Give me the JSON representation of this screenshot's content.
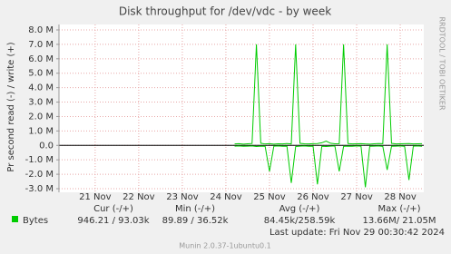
{
  "chart_data": {
    "type": "line",
    "title": "Disk throughput for /dev/vdc - by week",
    "y_label": "Pr second read (-) / write (+)",
    "side_label": "RRDTOOL / TOBI OETIKER",
    "ylim": [
      -3000000,
      8000000
    ],
    "yticks": [
      {
        "value": 8000000,
        "label": "8.0 M"
      },
      {
        "value": 7000000,
        "label": "7.0 M"
      },
      {
        "value": 6000000,
        "label": "6.0 M"
      },
      {
        "value": 5000000,
        "label": "5.0 M"
      },
      {
        "value": 4000000,
        "label": "4.0 M"
      },
      {
        "value": 3000000,
        "label": "3.0 M"
      },
      {
        "value": 2000000,
        "label": "2.0 M"
      },
      {
        "value": 1000000,
        "label": "1.0 M"
      },
      {
        "value": 0,
        "label": "0.0"
      },
      {
        "value": -1000000,
        "label": "-1.0 M"
      },
      {
        "value": -2000000,
        "label": "-2.0 M"
      },
      {
        "value": -3000000,
        "label": "-3.0 M"
      }
    ],
    "xlim": [
      20.17,
      28.54
    ],
    "xticks": [
      {
        "value": 21,
        "label": "21 Nov"
      },
      {
        "value": 22,
        "label": "22 Nov"
      },
      {
        "value": 23,
        "label": "23 Nov"
      },
      {
        "value": 24,
        "label": "24 Nov"
      },
      {
        "value": 25,
        "label": "25 Nov"
      },
      {
        "value": 26,
        "label": "26 Nov"
      },
      {
        "value": 27,
        "label": "27 Nov"
      },
      {
        "value": 28,
        "label": "28 Nov"
      }
    ],
    "grid": true,
    "x": [
      24.2,
      24.3,
      24.4,
      24.5,
      24.6,
      24.7,
      24.8,
      24.9,
      25.0,
      25.1,
      25.2,
      25.3,
      25.4,
      25.5,
      25.6,
      25.7,
      25.8,
      25.9,
      26.0,
      26.1,
      26.2,
      26.3,
      26.4,
      26.5,
      26.6,
      26.7,
      26.8,
      26.9,
      27.0,
      27.1,
      27.2,
      27.3,
      27.4,
      27.5,
      27.6,
      27.7,
      27.8,
      27.9,
      28.0,
      28.1,
      28.2,
      28.3,
      28.4,
      28.5
    ],
    "series": [
      {
        "name": "Bytes",
        "color": "#00cc00",
        "values": [
          100000,
          120000,
          90000,
          110000,
          130000,
          7000000,
          150000,
          100000,
          120000,
          90000,
          110000,
          100000,
          130000,
          100000,
          7000000,
          140000,
          110000,
          100000,
          120000,
          130000,
          180000,
          300000,
          150000,
          110000,
          120000,
          7000000,
          130000,
          100000,
          110000,
          120000,
          100000,
          90000,
          110000,
          130000,
          120000,
          7000000,
          140000,
          100000,
          110000,
          120000,
          130000,
          100000,
          110000,
          120000
        ]
      },
      {
        "color": "#00cc00",
        "values": [
          -50000,
          -40000,
          -60000,
          -50000,
          -40000,
          -80000,
          -50000,
          -60000,
          -1800000,
          -50000,
          -40000,
          -60000,
          -50000,
          -2600000,
          -80000,
          -50000,
          -40000,
          -60000,
          -50000,
          -2700000,
          -60000,
          -80000,
          -50000,
          -40000,
          -1800000,
          -70000,
          -50000,
          -60000,
          -40000,
          -50000,
          -2900000,
          -60000,
          -50000,
          -40000,
          -70000,
          -1700000,
          -60000,
          -50000,
          -40000,
          -60000,
          -2400000,
          -50000,
          -40000,
          -60000
        ]
      }
    ],
    "stats_headers": [
      "Cur (-/+)",
      "Min (-/+)",
      "Avg (-/+)",
      "Max (-/+)"
    ],
    "stats": [
      "946.21 / 93.03k",
      "89.89 / 36.52k",
      "84.45k/258.59k",
      "13.66M/ 21.05M"
    ],
    "last_update": "Last update: Fri Nov 29 00:30:42 2024",
    "footer": "Munin 2.0.37-1ubuntu0.1"
  }
}
